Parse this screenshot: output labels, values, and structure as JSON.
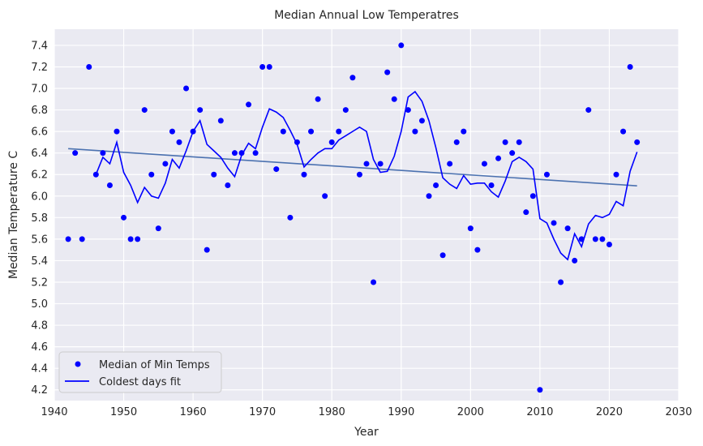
{
  "chart_data": {
    "type": "scatter",
    "title": "Median Annual Low Temperatres",
    "xlabel": "Year",
    "ylabel": "Median Temperature C",
    "xlim": [
      1940,
      2030
    ],
    "ylim": [
      4.1,
      7.55
    ],
    "xticks": [
      1940,
      1950,
      1960,
      1970,
      1980,
      1990,
      2000,
      2010,
      2020,
      2030
    ],
    "yticks": [
      4.2,
      4.4,
      4.6,
      4.8,
      5.0,
      5.2,
      5.4,
      5.6,
      5.8,
      6.0,
      6.2,
      6.4,
      6.6,
      6.8,
      7.0,
      7.2,
      7.4
    ],
    "grid": true,
    "legend_position": "lower-left",
    "colors": {
      "background": "#EAEAF2",
      "grid": "#FFFFFF",
      "points": "#0000FF",
      "fit": "#0000FF",
      "trend": "#4C72B0"
    },
    "series": [
      {
        "name": "Median of Min Temps",
        "kind": "scatter",
        "x": [
          1942,
          1943,
          1944,
          1945,
          1946,
          1947,
          1948,
          1949,
          1950,
          1951,
          1952,
          1953,
          1954,
          1955,
          1956,
          1957,
          1958,
          1959,
          1960,
          1961,
          1962,
          1963,
          1964,
          1965,
          1966,
          1967,
          1968,
          1969,
          1970,
          1971,
          1972,
          1973,
          1974,
          1975,
          1976,
          1977,
          1978,
          1979,
          1980,
          1981,
          1982,
          1983,
          1984,
          1985,
          1986,
          1987,
          1988,
          1989,
          1990,
          1991,
          1992,
          1993,
          1994,
          1995,
          1996,
          1997,
          1998,
          1999,
          2000,
          2001,
          2002,
          2003,
          2004,
          2005,
          2006,
          2007,
          2008,
          2009,
          2010,
          2011,
          2012,
          2013,
          2014,
          2015,
          2016,
          2017,
          2018,
          2019,
          2020,
          2021,
          2022,
          2023,
          2024
        ],
        "y": [
          5.6,
          6.4,
          5.6,
          7.2,
          6.2,
          6.4,
          6.1,
          6.6,
          5.8,
          5.6,
          5.6,
          6.8,
          6.2,
          5.7,
          6.3,
          6.6,
          6.5,
          7.0,
          6.6,
          6.8,
          5.5,
          6.2,
          6.7,
          6.1,
          6.4,
          6.4,
          6.85,
          6.4,
          7.2,
          7.2,
          6.25,
          6.6,
          5.8,
          6.5,
          6.2,
          6.6,
          6.9,
          6.0,
          6.5,
          6.6,
          6.8,
          7.1,
          6.2,
          6.3,
          5.2,
          6.3,
          7.15,
          6.9,
          7.4,
          6.8,
          6.6,
          6.7,
          6.0,
          6.1,
          5.45,
          6.3,
          6.5,
          6.6,
          5.7,
          5.5,
          6.3,
          6.1,
          6.35,
          6.5,
          6.4,
          6.5,
          5.85,
          6.0,
          4.2,
          6.2,
          5.75,
          5.2,
          5.7,
          5.4,
          5.6,
          6.8,
          5.6,
          5.6,
          5.55,
          6.2,
          6.6,
          7.2,
          6.5
        ]
      },
      {
        "name": "Coldest days fit",
        "kind": "line",
        "x": [
          1946,
          1947,
          1948,
          1949,
          1950,
          1951,
          1952,
          1953,
          1954,
          1955,
          1956,
          1957,
          1958,
          1959,
          1960,
          1961,
          1962,
          1963,
          1964,
          1965,
          1966,
          1967,
          1968,
          1969,
          1970,
          1971,
          1972,
          1973,
          1974,
          1975,
          1976,
          1977,
          1978,
          1979,
          1980,
          1981,
          1982,
          1983,
          1984,
          1985,
          1986,
          1987,
          1988,
          1989,
          1990,
          1991,
          1992,
          1993,
          1994,
          1995,
          1996,
          1997,
          1998,
          1999,
          2000,
          2001,
          2002,
          2003,
          2004,
          2005,
          2006,
          2007,
          2008,
          2009,
          2010,
          2011,
          2012,
          2013,
          2014,
          2015,
          2016,
          2017,
          2018,
          2019,
          2020,
          2021,
          2022,
          2023,
          2024
        ],
        "y": [
          6.2,
          6.36,
          6.3,
          6.5,
          6.22,
          6.1,
          5.94,
          6.08,
          6.0,
          5.98,
          6.12,
          6.34,
          6.26,
          6.42,
          6.6,
          6.7,
          6.48,
          6.42,
          6.36,
          6.26,
          6.18,
          6.38,
          6.49,
          6.44,
          6.64,
          6.81,
          6.78,
          6.73,
          6.61,
          6.48,
          6.27,
          6.34,
          6.4,
          6.44,
          6.44,
          6.52,
          6.56,
          6.6,
          6.64,
          6.6,
          6.34,
          6.22,
          6.23,
          6.37,
          6.6,
          6.92,
          6.97,
          6.88,
          6.7,
          6.45,
          6.17,
          6.11,
          6.07,
          6.19,
          6.11,
          6.12,
          6.12,
          6.04,
          5.99,
          6.14,
          6.32,
          6.36,
          6.32,
          6.25,
          5.79,
          5.75,
          5.6,
          5.47,
          5.41,
          5.65,
          5.53,
          5.74,
          5.82,
          5.8,
          5.83,
          5.95,
          5.91,
          6.23,
          6.41
        ]
      },
      {
        "name": "",
        "kind": "line",
        "x": [
          1942,
          2024
        ],
        "y": [
          6.44,
          6.095
        ]
      }
    ]
  }
}
